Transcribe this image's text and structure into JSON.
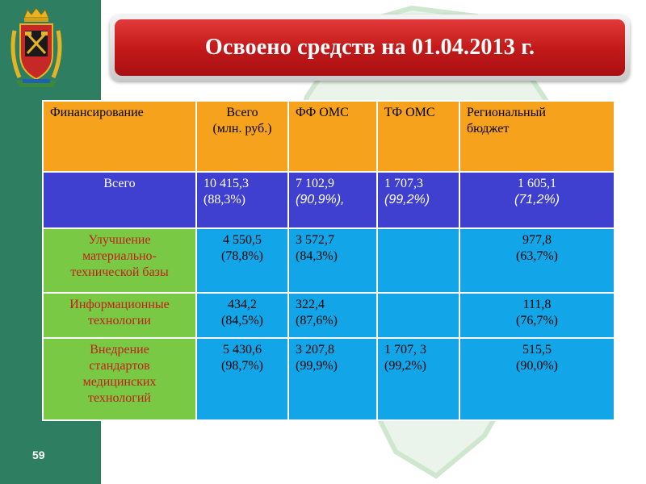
{
  "slide": {
    "number": "59",
    "title": "Освоено средств на 01.04.2013 г."
  },
  "table": {
    "headers": {
      "col1": "Финансирование",
      "col2_l1": "Всего",
      "col2_l2": "(млн. руб.)",
      "col3": "ФФ ОМС",
      "col4": "ТФ ОМС",
      "col5_l1": "Региональный",
      "col5_l2": "бюджет"
    },
    "total": {
      "label": "Всего",
      "all_value": "10 415,3",
      "all_pct": "(88,3%)",
      "ff_value": "7 102,9",
      "ff_pct": "(90,9%),",
      "tf_value": "1 707,3",
      "tf_pct": "(99,2%)",
      "reg_value": "1 605,1",
      "reg_pct": "(71,2%)"
    },
    "rows": [
      {
        "label_l1": "Улучшение",
        "label_l2": "материально-",
        "label_l3": "технической базы",
        "all_value": "4 550,5",
        "all_pct": "(78,8%)",
        "ff_value": "3 572,7",
        "ff_pct": "(84,3%)",
        "tf_value": "",
        "tf_pct": "",
        "reg_value": "977,8",
        "reg_pct": "(63,7%)"
      },
      {
        "label_l1": "Информационные",
        "label_l2": "технологии",
        "all_value": "434,2",
        "all_pct": "(84,5%)",
        "ff_value": "322,4",
        "ff_pct": "(87,6%)",
        "tf_value": "",
        "tf_pct": "",
        "reg_value": "111,8",
        "reg_pct": "(76,7%)"
      },
      {
        "label_l1": "Внедрение",
        "label_l2": "стандартов",
        "label_l3": "медицинских",
        "label_l4": "технологий",
        "all_value": "5 430,6",
        "all_pct": "(98,7%)",
        "ff_value": "3 207,8",
        "ff_pct": "(99,9%)",
        "tf_value": "1 707, 3",
        "tf_pct": "(99,2%)",
        "reg_value": "515,5",
        "reg_pct": "(90,0%)"
      }
    ]
  },
  "colors": {
    "sidebar": "#2e7f62",
    "banner_red": "#c41a1a",
    "header_orange": "#f6a21d",
    "total_blue": "#3f3fd0",
    "category_green": "#79c944",
    "value_cyan": "#12a6e8",
    "category_text": "#c0201c"
  },
  "icons": {
    "emblem": "kemerovo-coat-of-arms-icon"
  }
}
